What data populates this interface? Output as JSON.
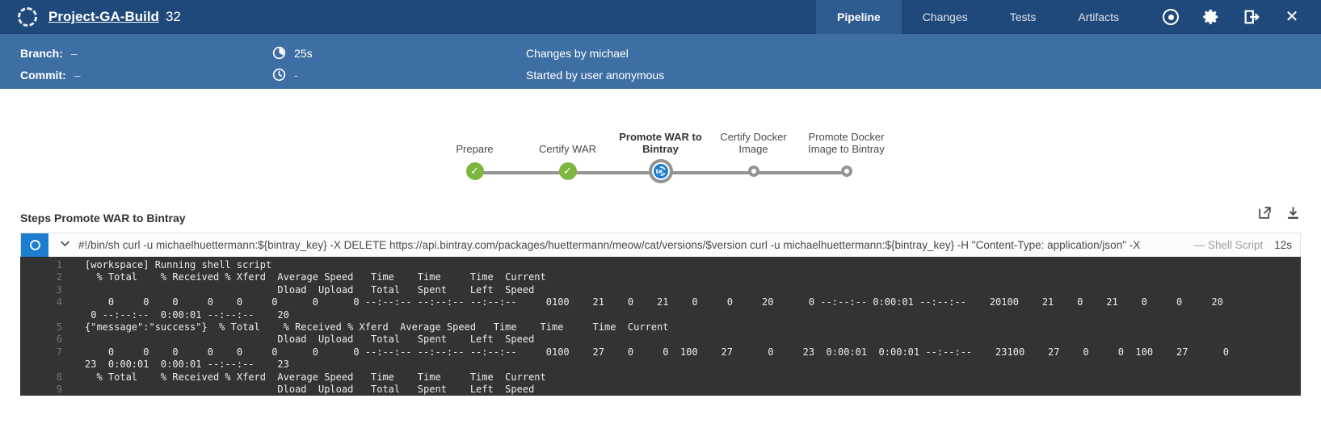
{
  "header": {
    "title": "Project-GA-Build",
    "run_number": "32",
    "tabs": [
      {
        "label": "Pipeline",
        "active": true
      },
      {
        "label": "Changes",
        "active": false
      },
      {
        "label": "Tests",
        "active": false
      },
      {
        "label": "Artifacts",
        "active": false
      }
    ],
    "icons": [
      "stop-icon",
      "gear-icon",
      "logout-icon",
      "close-icon"
    ]
  },
  "summary": {
    "branch_label": "Branch:",
    "branch_value": "–",
    "commit_label": "Commit:",
    "commit_value": "–",
    "duration": "25s",
    "estimated": "-",
    "changes": "Changes by michael",
    "started": "Started by user anonymous"
  },
  "stages": [
    {
      "label": "Prepare",
      "status": "success"
    },
    {
      "label": "Certify WAR",
      "status": "success"
    },
    {
      "label": "Promote WAR to Bintray",
      "status": "running",
      "active": true
    },
    {
      "label": "Certify Docker Image",
      "status": "pending"
    },
    {
      "label": "Promote Docker Image to Bintray",
      "status": "pending"
    }
  ],
  "steps": {
    "heading": "Steps Promote WAR to Bintray",
    "step": {
      "command": "#!/bin/sh curl -u michaelhuettermann:${bintray_key} -X DELETE https://api.bintray.com/packages/huettermann/meow/cat/versions/$version curl -u michaelhuettermann:${bintray_key} -H \"Content-Type: application/json\" -X",
      "type_label": "— Shell Script",
      "duration": "12s"
    }
  },
  "console": {
    "lines": [
      {
        "num": "1",
        "text": "[workspace] Running shell script"
      },
      {
        "num": "2",
        "text": "  % Total    % Received % Xferd  Average Speed   Time    Time     Time  Current"
      },
      {
        "num": "3",
        "text": "                                 Dload  Upload   Total   Spent    Left  Speed"
      },
      {
        "num": "4",
        "text": "    0     0    0     0    0     0      0      0 --:--:-- --:--:-- --:--:--     0100    21    0    21    0     0     20      0 --:--:-- 0:00:01 --:--:--    20100    21    0    21    0     0     20"
      },
      {
        "num": "",
        "text": " 0 --:--:--  0:00:01 --:--:--    20"
      },
      {
        "num": "5",
        "text": "{\"message\":\"success\"}  % Total    % Received % Xferd  Average Speed   Time    Time     Time  Current"
      },
      {
        "num": "6",
        "text": "                                 Dload  Upload   Total   Spent    Left  Speed"
      },
      {
        "num": "7",
        "text": "    0     0    0     0    0     0      0      0 --:--:-- --:--:-- --:--:--     0100    27    0     0  100    27      0     23  0:00:01  0:00:01 --:--:--    23100    27    0     0  100    27      0"
      },
      {
        "num": "",
        "text": "23  0:00:01  0:00:01 --:--:--    23"
      },
      {
        "num": "8",
        "text": "  % Total    % Received % Xferd  Average Speed   Time    Time     Time  Current"
      },
      {
        "num": "9",
        "text": "                                 Dload  Upload   Total   Spent    Left  Speed"
      }
    ]
  },
  "colors": {
    "topbar": "#20497b",
    "band": "#3e6fa4",
    "accent_blue": "#1d7dcf",
    "success_green": "#7db742",
    "pending_gray": "#949393",
    "console_bg": "#333333"
  }
}
